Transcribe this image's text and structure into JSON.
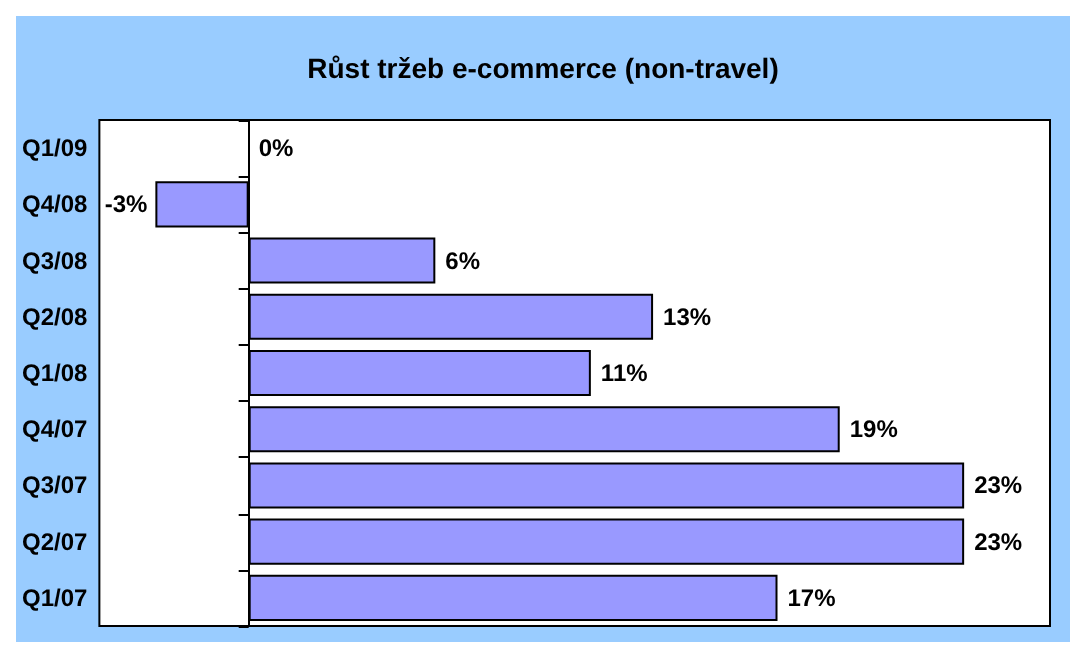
{
  "chart_data": {
    "type": "bar",
    "orientation": "horizontal",
    "title": "Růst tržeb e-commerce (non-travel)",
    "categories": [
      "Q1/09",
      "Q4/08",
      "Q3/08",
      "Q2/08",
      "Q1/08",
      "Q4/07",
      "Q3/07",
      "Q2/07",
      "Q1/07"
    ],
    "values": [
      0,
      -3,
      6,
      13,
      11,
      19,
      23,
      23,
      17
    ],
    "color": "#9999ff",
    "value_labels": [
      "0%",
      "-3%",
      "6%",
      "13%",
      "11%",
      "19%",
      "23%",
      "23%",
      "17%"
    ],
    "grid": false
  }
}
